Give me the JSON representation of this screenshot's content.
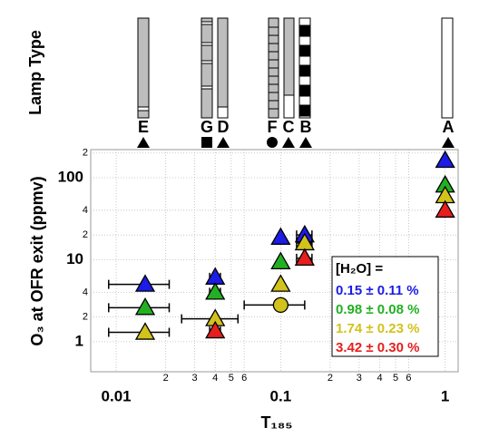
{
  "chart_data": {
    "type": "scatter",
    "x_label": "T₁₈₅",
    "y_label": "O₃ at OFR exit (ppmv)",
    "log_x": true,
    "log_y": true,
    "grid": true,
    "xlim": [
      0.007,
      1.2
    ],
    "ylim": [
      0.43,
      220
    ],
    "xticks": [
      0.01,
      {
        "value": 0.02,
        "label": "2"
      },
      {
        "value": 0.03,
        "label": "3"
      },
      {
        "value": 0.04,
        "label": "4"
      },
      {
        "value": 0.05,
        "label": "5"
      },
      {
        "value": 0.06,
        "label": "6"
      },
      0.1,
      {
        "value": 0.2,
        "label": "2"
      },
      {
        "value": 0.3,
        "label": "3"
      },
      {
        "value": 0.4,
        "label": "4"
      },
      {
        "value": 0.5,
        "label": "5"
      },
      {
        "value": 0.6,
        "label": "6"
      },
      1
    ],
    "yticks": [
      1,
      {
        "value": 2,
        "label": "2"
      },
      {
        "value": 4,
        "label": "4"
      },
      10,
      {
        "value": 20,
        "label": "2"
      },
      {
        "value": 40,
        "label": "4"
      },
      100,
      {
        "value": 200,
        "label": "2"
      }
    ],
    "legend_title": "[H₂O] =",
    "series": [
      {
        "name": "0.15 ± 0.11 %",
        "color": "#1c1ce6",
        "x": [
          0.015,
          0.04,
          0.1,
          0.14,
          1
        ],
        "values": [
          5.0,
          6.1,
          18.7,
          20,
          162
        ],
        "xerr": [
          0.006,
          0.003,
          null,
          0.015,
          null
        ]
      },
      {
        "name": "0.98 ± 0.08 %",
        "color": "#22b022",
        "x": [
          0.015,
          0.04,
          0.1,
          1
        ],
        "values": [
          2.6,
          4.0,
          9.4,
          81
        ],
        "xerr": [
          0.006,
          0.003,
          null,
          null
        ]
      },
      {
        "name": "1.74 ± 0.23 %",
        "color": "#d2c21c",
        "x": [
          0.015,
          0.04,
          0.1,
          0.14,
          1
        ],
        "values": [
          1.3,
          1.9,
          5.0,
          16,
          60
        ],
        "xerr": [
          0.006,
          0.015,
          null,
          0.015,
          null
        ]
      },
      {
        "name": "3.42 ± 0.30 %",
        "color": "#e61e1e",
        "x": [
          0.04,
          0.14,
          1
        ],
        "values": [
          1.35,
          10.4,
          40
        ],
        "xerr": [
          0.003,
          0.015,
          null
        ]
      }
    ],
    "extra_points": {
      "marker": "circle",
      "color": "#d2c21c",
      "x": [
        0.1
      ],
      "values": [
        2.8
      ],
      "xerr": [
        0.04
      ]
    },
    "lamp_panel": {
      "label": "Lamp Type",
      "lamps": [
        {
          "label": "E"
        },
        {
          "label": "G"
        },
        {
          "label": "D"
        },
        {
          "label": "F"
        },
        {
          "label": "C"
        },
        {
          "label": "B"
        },
        {
          "label": "A"
        }
      ]
    }
  }
}
